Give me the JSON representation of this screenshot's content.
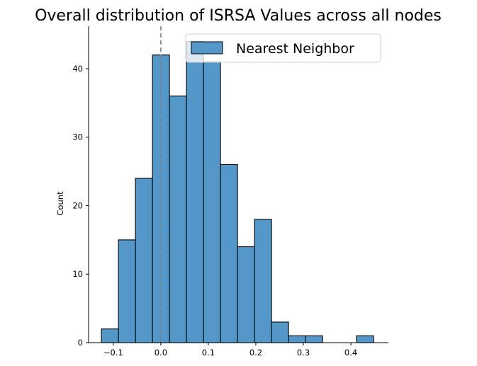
{
  "chart_data": {
    "type": "bar",
    "title": "Overall distribution of ISRSA Values across all nodes",
    "xlabel": "",
    "ylabel": "Count",
    "legend": {
      "entries": [
        "Nearest Neighbor"
      ],
      "placement": "top-right"
    },
    "series": [
      {
        "name": "Nearest Neighbor",
        "bin_width": 0.0358,
        "bin_starts": [
          -0.125,
          -0.0892,
          -0.0534,
          -0.0176,
          0.0182,
          0.054,
          0.0898,
          0.1256,
          0.1614,
          0.1972,
          0.233,
          0.2688,
          0.3046,
          0.3404,
          0.3762,
          0.412
        ],
        "values": [
          2,
          15,
          24,
          42,
          36,
          44,
          41,
          26,
          14,
          18,
          3,
          1,
          1,
          0,
          0,
          1
        ],
        "color": "#5497c9",
        "edge_color": "#000000"
      }
    ],
    "vline": {
      "x": 0.0,
      "style": "dashed",
      "color": "#808080"
    },
    "xlim": [
      -0.152,
      0.479
    ],
    "ylim": [
      0,
      46.2
    ],
    "xticks": [
      -0.1,
      0.0,
      0.1,
      0.2,
      0.3,
      0.4
    ],
    "xtick_labels": [
      "−0.1",
      "0.0",
      "0.1",
      "0.2",
      "0.3",
      "0.4"
    ],
    "yticks": [
      0,
      10,
      20,
      30,
      40
    ],
    "ytick_labels": [
      "0",
      "10",
      "20",
      "30",
      "40"
    ],
    "grid": false
  }
}
